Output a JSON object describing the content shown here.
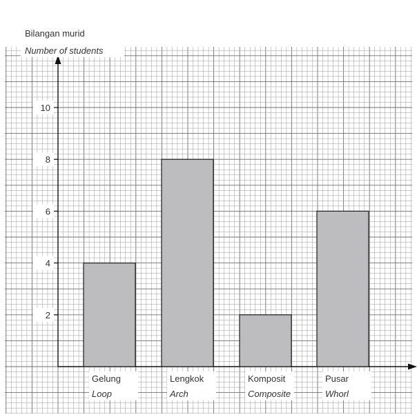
{
  "chart_data": {
    "type": "bar",
    "ylabel": "Bilangan murid",
    "ylabel_en": "Number of students",
    "categories": [
      {
        "name": "Gelung",
        "name_en": "Loop"
      },
      {
        "name": "Lengkok",
        "name_en": "Arch"
      },
      {
        "name": "Komposit",
        "name_en": "Composite"
      },
      {
        "name": "Pusar",
        "name_en": "Whorl"
      }
    ],
    "values": [
      4,
      8,
      2,
      6
    ],
    "y_ticks": [
      "2",
      "4",
      "6",
      "8",
      "10"
    ],
    "ylim": [
      0,
      12
    ],
    "grid": true,
    "colors": {
      "bar_fill": "#bdbdbf",
      "bar_stroke": "#1a1a1a",
      "grid_minor": "#9a9a9a",
      "grid_major": "#6f6f6f",
      "axis": "#111111"
    }
  }
}
